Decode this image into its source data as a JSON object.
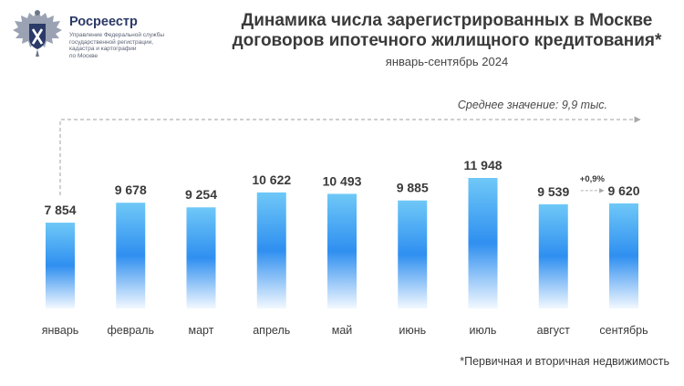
{
  "logo": {
    "name": "Росреестр",
    "description_lines": [
      "Управление Федеральной службы",
      "государственной регистрации,",
      "кадастра и картографии",
      "по Москве"
    ]
  },
  "header": {
    "title_lines": [
      "Динамика числа зарегистрированных в Москве",
      "договоров ипотечного жилищного кредитования*"
    ],
    "subtitle": "январь-сентябрь 2024"
  },
  "footnote": "*Первичная и вторичная недвижимость",
  "colors": {
    "bar_top": "#6fc8f7",
    "bar_mid": "#2f8ff0",
    "bar_bottom": "#f2f8ff",
    "text": "#3a3a3a",
    "arrow": "#b0b0b0"
  },
  "chart_data": {
    "type": "bar",
    "categories": [
      "январь",
      "февраль",
      "март",
      "апрель",
      "май",
      "июнь",
      "июль",
      "август",
      "сентябрь"
    ],
    "values": [
      7854,
      9678,
      9254,
      10622,
      10493,
      9885,
      11948,
      9539,
      9620
    ],
    "value_labels": [
      "7 854",
      "9 678",
      "9 254",
      "10 622",
      "10 493",
      "9 885",
      "11 948",
      "9 539",
      "9 620"
    ],
    "average_label": "Среднее значение: 9,9 тыс.",
    "change_label": "+0,9%",
    "grid": false,
    "legend": "none"
  }
}
